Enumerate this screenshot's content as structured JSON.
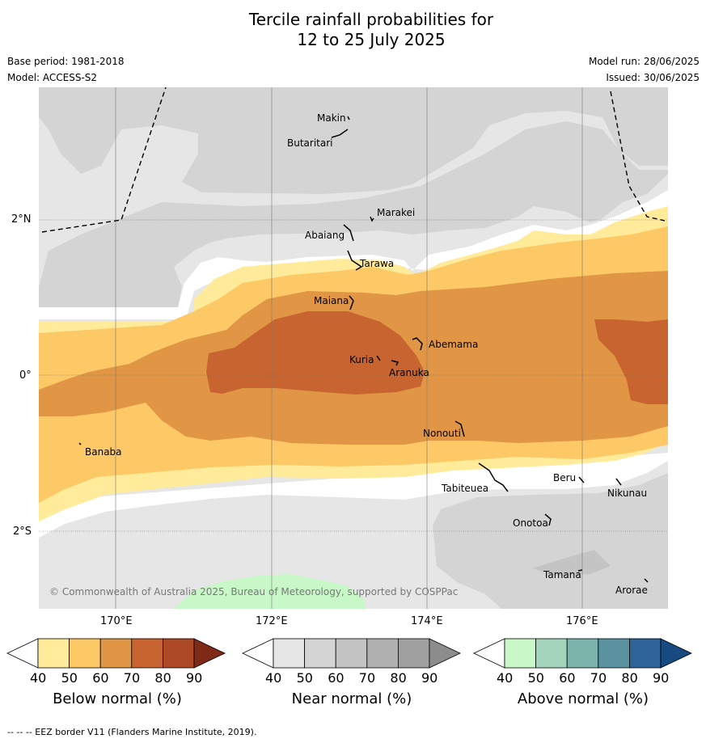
{
  "title": [
    "Tercile rainfall probabilities for",
    "12 to 25 July 2025"
  ],
  "base_period": "Base period: 1981-2018",
  "model": "Model: ACCESS-S2",
  "model_run": "Model run: 28/06/2025",
  "issued": "Issued: 30/06/2025",
  "copyright": "© Commonwealth of Australia 2025, Bureau of Meteorology, supported by COSPPac",
  "lon_ticks": [
    "170°E",
    "172°E",
    "174°E",
    "176°E"
  ],
  "lat_ticks": [
    "2°N",
    "0°",
    "2°S"
  ],
  "places": [
    "Makin",
    "Butaritari",
    "Marakei",
    "Abaiang",
    "Tarawa",
    "Maiana",
    "Abemama",
    "Kuria",
    "Aranuka",
    "Nonouti",
    "Banaba",
    "Tabiteuea",
    "Beru",
    "Nikunau",
    "Onotoa",
    "Tamana",
    "Arorae"
  ],
  "colorbars": [
    {
      "title": "Below normal (%)",
      "levels": [
        "40",
        "50",
        "60",
        "70",
        "80",
        "90"
      ],
      "colors": [
        "#ffffff",
        "#ffeb99",
        "#fdc966",
        "#e09644",
        "#c8642f",
        "#ad4a25",
        "#7f2a16"
      ]
    },
    {
      "title": "Near normal (%)",
      "levels": [
        "40",
        "50",
        "60",
        "70",
        "80",
        "90"
      ],
      "colors": [
        "#ffffff",
        "#e6e6e6",
        "#d4d4d4",
        "#c4c4c4",
        "#b0b0b0",
        "#a0a0a0",
        "#8c8c8c"
      ]
    },
    {
      "title": "Above normal (%)",
      "levels": [
        "40",
        "50",
        "60",
        "70",
        "80",
        "90"
      ],
      "colors": [
        "#ffffff",
        "#c8f7c8",
        "#a2d5bb",
        "#7cb4ab",
        "#5a92a0",
        "#2e6399",
        "#164a80"
      ]
    }
  ],
  "footnote": "--  --  -- EEZ border V11 (Flanders Marine Institute, 2019)."
}
